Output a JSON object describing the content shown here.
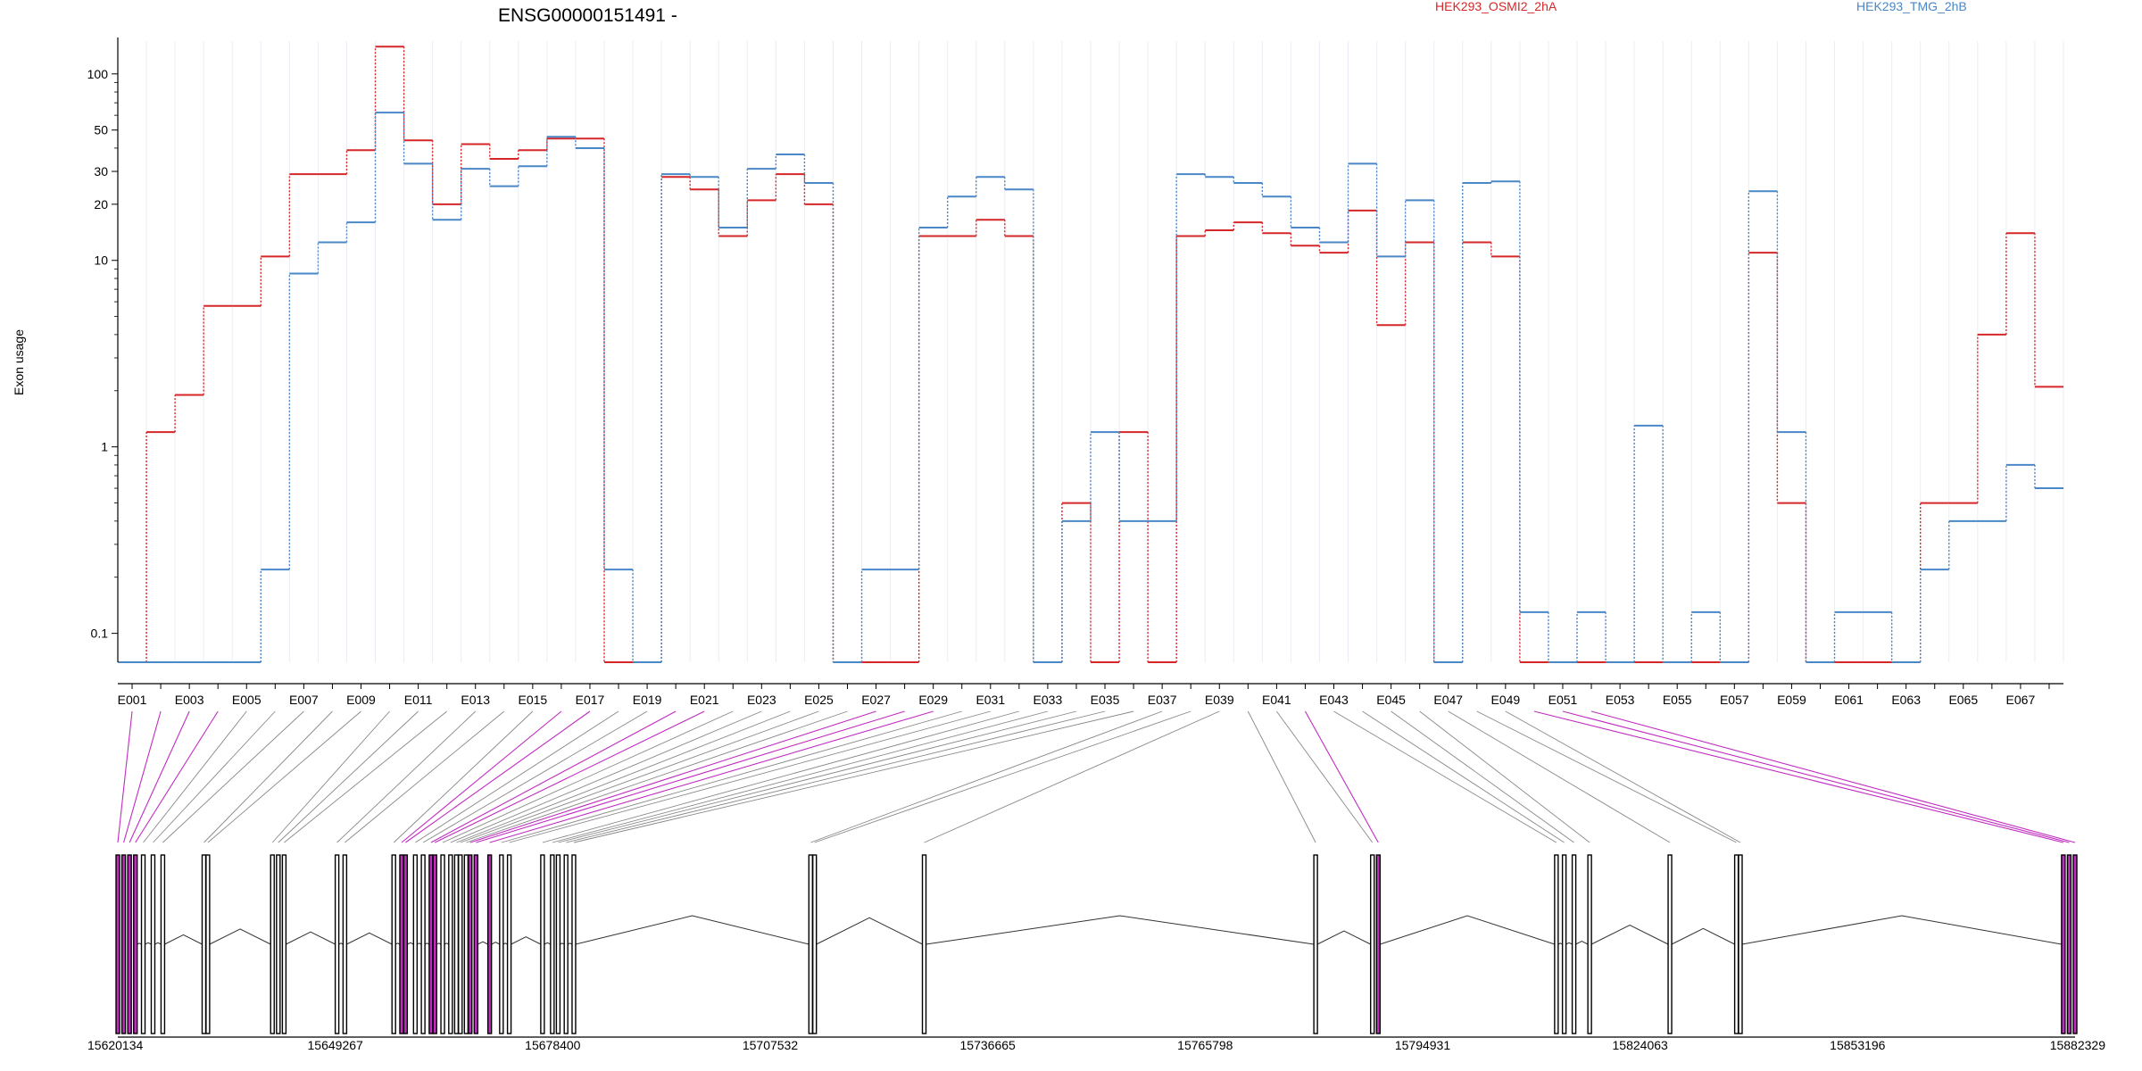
{
  "chart_data": {
    "type": "line",
    "title": "ENSG00000151491 -",
    "ylabel": "Exon usage",
    "xlabel": "",
    "y_scale": "log",
    "ylim": [
      0.07,
      150
    ],
    "y_ticks": [
      0.1,
      1,
      10,
      20,
      30,
      50,
      100
    ],
    "y_tick_labels": [
      "0.1",
      "1",
      "10",
      "20",
      "30",
      "50",
      "100"
    ],
    "x_tick_labels": [
      "E001",
      "E003",
      "E005",
      "E007",
      "E009",
      "E011",
      "E013",
      "E015",
      "E017",
      "E019",
      "E021",
      "E023",
      "E025",
      "E027",
      "E029",
      "E031",
      "E033",
      "E035",
      "E037",
      "E039",
      "E041",
      "E043",
      "E045",
      "E047",
      "E049",
      "E051",
      "E053",
      "E055",
      "E057",
      "E059",
      "E061",
      "E063",
      "E065",
      "E067"
    ],
    "legend_placement": "top",
    "grid": true,
    "series": [
      {
        "name": "HEK293_OSMI2_2hA",
        "color": "#d62728",
        "values": [
          0.07,
          1.2,
          1.9,
          5.7,
          5.7,
          10.5,
          29,
          29,
          39,
          140,
          44,
          20,
          42,
          35,
          39,
          45,
          45,
          0.07,
          0.07,
          28,
          24,
          13.5,
          21,
          29,
          20,
          0.07,
          0.07,
          0.07,
          13.5,
          13.5,
          16.5,
          13.5,
          0.07,
          0.5,
          0.07,
          1.2,
          0.07,
          13.5,
          14.5,
          16,
          14,
          12,
          11,
          18.5,
          4.5,
          12.5,
          0.07,
          12.5,
          10.5,
          0.07,
          0.07,
          0.07,
          0.07,
          0.07,
          0.07,
          0.07,
          0.07,
          11,
          0.5,
          0.07,
          0.07,
          0.07,
          0.07,
          0.5,
          0.5,
          4,
          14,
          2.1
        ]
      },
      {
        "name": "HEK293_TMG_2hB",
        "color": "#4a87c6",
        "values": [
          0.07,
          0.07,
          0.07,
          0.07,
          0.07,
          0.22,
          8.5,
          12.5,
          16,
          62,
          33,
          16.5,
          31,
          25,
          32,
          46,
          40,
          0.22,
          0.07,
          29,
          28,
          15,
          31,
          37,
          26,
          0.07,
          0.22,
          0.22,
          15,
          22,
          28,
          24,
          0.07,
          0.4,
          1.2,
          0.4,
          0.4,
          29,
          28,
          26,
          22,
          15,
          12.5,
          33,
          10.5,
          21,
          0.07,
          26,
          26.5,
          0.13,
          0.07,
          0.13,
          0.07,
          1.3,
          0.07,
          0.13,
          0.07,
          23.5,
          1.2,
          0.07,
          0.13,
          0.13,
          0.07,
          0.22,
          0.4,
          0.4,
          0.8,
          0.6
        ]
      }
    ]
  },
  "gene_model": {
    "coordinate_labels": [
      "15620134",
      "15649267",
      "15678400",
      "15707532",
      "15736665",
      "15765798",
      "15794931",
      "15824063",
      "15853196",
      "15882329"
    ],
    "highlight_color": "#c02cc0",
    "exons": [
      {
        "x": 0.0,
        "h": true
      },
      {
        "x": 0.003,
        "h": true
      },
      {
        "x": 0.006,
        "h": true
      },
      {
        "x": 0.009,
        "h": true
      },
      {
        "x": 0.013,
        "h": false
      },
      {
        "x": 0.018,
        "h": false
      },
      {
        "x": 0.023,
        "h": false
      },
      {
        "x": 0.044,
        "h": false
      },
      {
        "x": 0.046,
        "h": false
      },
      {
        "x": 0.079,
        "h": false
      },
      {
        "x": 0.082,
        "h": false
      },
      {
        "x": 0.085,
        "h": false
      },
      {
        "x": 0.112,
        "h": false
      },
      {
        "x": 0.116,
        "h": false
      },
      {
        "x": 0.141,
        "h": false
      },
      {
        "x": 0.145,
        "h": true
      },
      {
        "x": 0.147,
        "h": true
      },
      {
        "x": 0.152,
        "h": false
      },
      {
        "x": 0.156,
        "h": false
      },
      {
        "x": 0.16,
        "h": true
      },
      {
        "x": 0.162,
        "h": true
      },
      {
        "x": 0.166,
        "h": false
      },
      {
        "x": 0.17,
        "h": false
      },
      {
        "x": 0.173,
        "h": false
      },
      {
        "x": 0.175,
        "h": false
      },
      {
        "x": 0.178,
        "h": false
      },
      {
        "x": 0.18,
        "h": true
      },
      {
        "x": 0.183,
        "h": true
      },
      {
        "x": 0.19,
        "h": true
      },
      {
        "x": 0.196,
        "h": false
      },
      {
        "x": 0.2,
        "h": false
      },
      {
        "x": 0.217,
        "h": false
      },
      {
        "x": 0.222,
        "h": false
      },
      {
        "x": 0.225,
        "h": false
      },
      {
        "x": 0.229,
        "h": false
      },
      {
        "x": 0.233,
        "h": false
      },
      {
        "x": 0.354,
        "h": false
      },
      {
        "x": 0.356,
        "h": false
      },
      {
        "x": 0.412,
        "h": false
      },
      {
        "x": 0.612,
        "h": false
      },
      {
        "x": 0.641,
        "h": false
      },
      {
        "x": 0.644,
        "h": true
      },
      {
        "x": 0.735,
        "h": false
      },
      {
        "x": 0.739,
        "h": false
      },
      {
        "x": 0.744,
        "h": false
      },
      {
        "x": 0.752,
        "h": false
      },
      {
        "x": 0.793,
        "h": false
      },
      {
        "x": 0.827,
        "h": false
      },
      {
        "x": 0.829,
        "h": false
      },
      {
        "x": 0.994,
        "h": true
      },
      {
        "x": 0.997,
        "h": true
      },
      {
        "x": 1.0,
        "h": true
      }
    ]
  }
}
